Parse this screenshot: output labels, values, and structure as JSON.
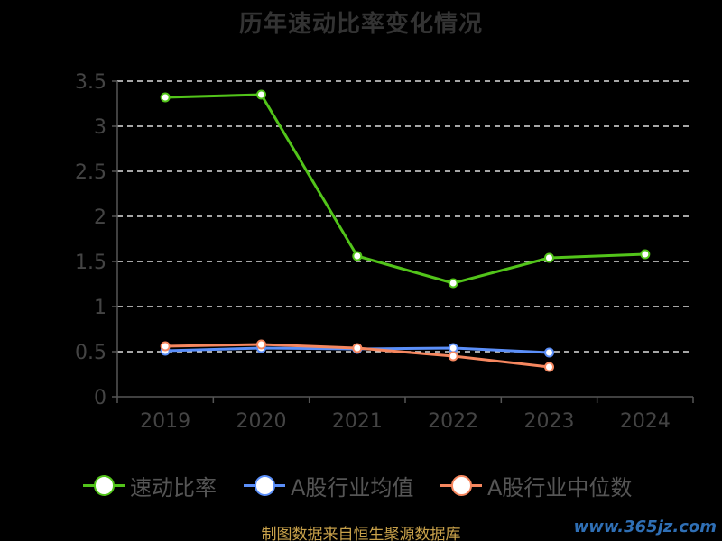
{
  "title": "历年速动比率变化情况",
  "source": "制图数据来自恒生聚源数据库",
  "watermark": "www.365jz.com",
  "colors": {
    "background": "#000000",
    "axis": "#555555",
    "grid": "#dddddd",
    "tick_text": "#444444",
    "series_1": "#52c41a",
    "series_2": "#5b8ff9",
    "series_3": "#f6875f"
  },
  "chart_data": {
    "type": "line",
    "title": "历年速动比率变化情况",
    "categories": [
      "2019",
      "2020",
      "2021",
      "2022",
      "2023",
      "2024"
    ],
    "y_ticks": [
      "0",
      "0.5",
      "1",
      "1.5",
      "2",
      "2.5",
      "3",
      "3.5"
    ],
    "ylim": [
      0,
      3.5
    ],
    "grid": "horizontal dashed",
    "legend_position": "bottom",
    "series": [
      {
        "name": "速动比率",
        "color": "#52c41a",
        "values": [
          3.32,
          3.35,
          1.56,
          1.26,
          1.54,
          1.58
        ]
      },
      {
        "name": "A股行业均值",
        "color": "#5b8ff9",
        "values": [
          0.51,
          0.54,
          0.53,
          0.54,
          0.49,
          null
        ]
      },
      {
        "name": "A股行业中位数",
        "color": "#f6875f",
        "values": [
          0.56,
          0.58,
          0.54,
          0.45,
          0.33,
          null
        ]
      }
    ]
  }
}
